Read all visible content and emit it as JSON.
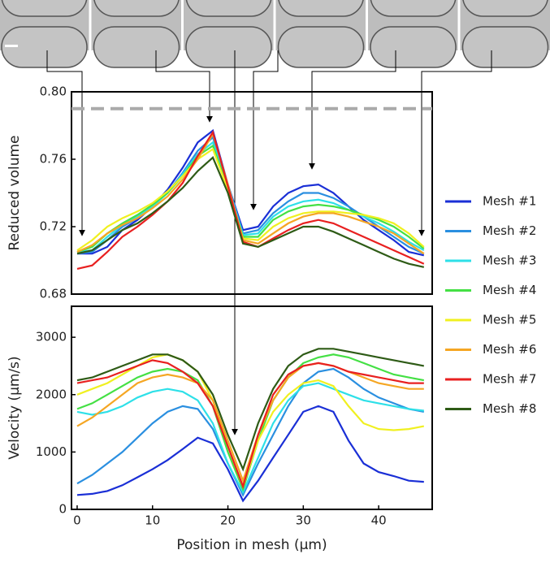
{
  "chart_data": [
    {
      "type": "line",
      "ylabel": "Reduced volume",
      "x": [
        0,
        2,
        4,
        6,
        8,
        10,
        12,
        14,
        16,
        18,
        20,
        22,
        24,
        26,
        28,
        30,
        32,
        34,
        36,
        38,
        40,
        42,
        44,
        46
      ],
      "xlim": [
        -0.75,
        47.1
      ],
      "ylim": [
        0.68,
        0.8
      ],
      "yticks": [
        0.68,
        0.72,
        0.76,
        {
          "value": 0.8,
          "label": "0.80"
        }
      ],
      "reference_line": {
        "value": 0.79,
        "color": "#aaaaaa"
      },
      "series": [
        {
          "name": "Mesh #1",
          "color": "#1a2fd6",
          "values": [
            0.704,
            0.704,
            0.708,
            0.718,
            0.724,
            0.732,
            0.742,
            0.755,
            0.77,
            0.777,
            0.745,
            0.718,
            0.72,
            0.732,
            0.74,
            0.744,
            0.745,
            0.74,
            0.732,
            0.724,
            0.718,
            0.712,
            0.705,
            0.703
          ]
        },
        {
          "name": "Mesh #2",
          "color": "#2a8fe0",
          "values": [
            0.704,
            0.705,
            0.712,
            0.72,
            0.725,
            0.732,
            0.74,
            0.752,
            0.765,
            0.773,
            0.745,
            0.716,
            0.718,
            0.728,
            0.735,
            0.74,
            0.74,
            0.737,
            0.732,
            0.726,
            0.72,
            0.714,
            0.708,
            0.704
          ]
        },
        {
          "name": "Mesh #3",
          "color": "#2ee0e8",
          "values": [
            0.705,
            0.706,
            0.714,
            0.721,
            0.726,
            0.732,
            0.74,
            0.751,
            0.763,
            0.77,
            0.744,
            0.715,
            0.716,
            0.726,
            0.732,
            0.735,
            0.736,
            0.734,
            0.73,
            0.726,
            0.722,
            0.717,
            0.711,
            0.706
          ]
        },
        {
          "name": "Mesh #4",
          "color": "#44e044",
          "values": [
            0.705,
            0.708,
            0.716,
            0.722,
            0.727,
            0.733,
            0.74,
            0.75,
            0.762,
            0.768,
            0.743,
            0.714,
            0.714,
            0.724,
            0.729,
            0.732,
            0.733,
            0.732,
            0.73,
            0.727,
            0.724,
            0.72,
            0.714,
            0.707
          ]
        },
        {
          "name": "Mesh #5",
          "color": "#f0f020",
          "values": [
            0.706,
            0.712,
            0.72,
            0.725,
            0.729,
            0.734,
            0.741,
            0.75,
            0.76,
            0.766,
            0.742,
            0.713,
            0.712,
            0.72,
            0.725,
            0.728,
            0.729,
            0.729,
            0.728,
            0.727,
            0.725,
            0.722,
            0.716,
            0.708
          ]
        },
        {
          "name": "Mesh #6",
          "color": "#f5a623",
          "values": [
            0.705,
            0.709,
            0.716,
            0.721,
            0.725,
            0.731,
            0.738,
            0.748,
            0.76,
            0.775,
            0.745,
            0.712,
            0.71,
            0.716,
            0.722,
            0.726,
            0.728,
            0.728,
            0.726,
            0.723,
            0.72,
            0.716,
            0.71,
            0.704
          ]
        },
        {
          "name": "Mesh #7",
          "color": "#e82020",
          "values": [
            0.695,
            0.697,
            0.705,
            0.714,
            0.72,
            0.727,
            0.735,
            0.746,
            0.762,
            0.776,
            0.744,
            0.711,
            0.708,
            0.713,
            0.718,
            0.722,
            0.724,
            0.722,
            0.718,
            0.714,
            0.71,
            0.706,
            0.702,
            0.698
          ]
        },
        {
          "name": "Mesh #8",
          "color": "#2e5b16",
          "values": [
            0.704,
            0.706,
            0.712,
            0.718,
            0.722,
            0.728,
            0.735,
            0.743,
            0.753,
            0.761,
            0.74,
            0.71,
            0.708,
            0.712,
            0.716,
            0.72,
            0.72,
            0.717,
            0.713,
            0.709,
            0.705,
            0.701,
            0.698,
            0.696
          ]
        }
      ]
    },
    {
      "type": "line",
      "ylabel": "Velocity (µm/s)",
      "xlabel": "Position in mesh (µm)",
      "x": [
        0,
        2,
        4,
        6,
        8,
        10,
        12,
        14,
        16,
        18,
        20,
        22,
        24,
        26,
        28,
        30,
        32,
        34,
        36,
        38,
        40,
        42,
        44,
        46
      ],
      "xlim": [
        -0.75,
        47.1
      ],
      "xticks": [
        0,
        10,
        20,
        30,
        40
      ],
      "ylim": [
        0,
        3540
      ],
      "yticks": [
        0,
        1000,
        2000,
        3000
      ],
      "series": [
        {
          "color": "#1a2fd6",
          "values": [
            250,
            270,
            320,
            420,
            560,
            700,
            860,
            1050,
            1250,
            1150,
            700,
            150,
            500,
            900,
            1300,
            1700,
            1800,
            1700,
            1200,
            800,
            650,
            580,
            500,
            480
          ]
        },
        {
          "color": "#2a8fe0",
          "values": [
            450,
            600,
            800,
            1000,
            1250,
            1500,
            1700,
            1800,
            1750,
            1400,
            800,
            250,
            800,
            1300,
            1800,
            2200,
            2400,
            2450,
            2300,
            2100,
            1950,
            1850,
            1750,
            1700
          ]
        },
        {
          "color": "#2ee0e8",
          "values": [
            1700,
            1650,
            1700,
            1800,
            1950,
            2050,
            2100,
            2050,
            1900,
            1500,
            800,
            300,
            900,
            1500,
            1900,
            2150,
            2200,
            2100,
            2000,
            1900,
            1850,
            1800,
            1750,
            1720
          ]
        },
        {
          "color": "#44e044",
          "values": [
            1750,
            1850,
            2000,
            2150,
            2300,
            2400,
            2450,
            2400,
            2250,
            1800,
            1000,
            350,
            1200,
            1900,
            2300,
            2550,
            2650,
            2700,
            2650,
            2550,
            2450,
            2350,
            2300,
            2250
          ]
        },
        {
          "color": "#f0f020",
          "values": [
            2000,
            2100,
            2200,
            2350,
            2500,
            2650,
            2700,
            2600,
            2400,
            1900,
            1100,
            400,
            1200,
            1700,
            2000,
            2200,
            2250,
            2150,
            1800,
            1500,
            1400,
            1380,
            1400,
            1450
          ]
        },
        {
          "color": "#f5a623",
          "values": [
            1450,
            1600,
            1800,
            2000,
            2200,
            2300,
            2350,
            2300,
            2200,
            1900,
            1200,
            500,
            1300,
            1900,
            2300,
            2500,
            2550,
            2500,
            2400,
            2300,
            2200,
            2150,
            2100,
            2100
          ]
        },
        {
          "color": "#e82020",
          "values": [
            2200,
            2250,
            2300,
            2400,
            2500,
            2600,
            2550,
            2400,
            2200,
            1800,
            1100,
            400,
            1300,
            2000,
            2350,
            2500,
            2550,
            2500,
            2400,
            2350,
            2300,
            2250,
            2200,
            2200
          ]
        },
        {
          "color": "#2e5b16",
          "values": [
            2250,
            2300,
            2400,
            2500,
            2600,
            2700,
            2700,
            2600,
            2400,
            2000,
            1300,
            700,
            1500,
            2100,
            2500,
            2700,
            2800,
            2800,
            2750,
            2700,
            2650,
            2600,
            2550,
            2500
          ]
        }
      ]
    }
  ]
}
